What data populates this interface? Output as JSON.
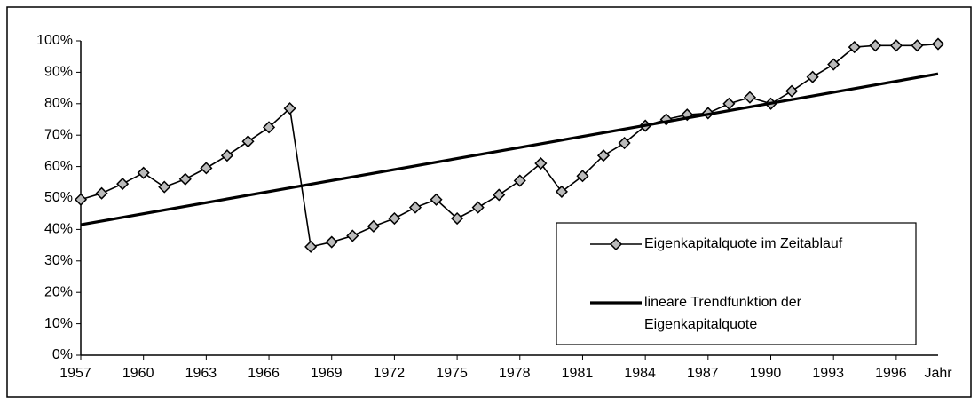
{
  "chart_data": {
    "type": "line",
    "x_label": "Jahr",
    "xlim": [
      1957,
      1998
    ],
    "xticks": [
      1957,
      1960,
      1963,
      1966,
      1969,
      1972,
      1975,
      1978,
      1981,
      1984,
      1987,
      1990,
      1993,
      1996
    ],
    "ylim": [
      0,
      100
    ],
    "yticks": [
      {
        "value": 0,
        "label": "0%"
      },
      {
        "value": 10,
        "label": "10%"
      },
      {
        "value": 20,
        "label": "20%"
      },
      {
        "value": 30,
        "label": "30%"
      },
      {
        "value": 40,
        "label": "40%"
      },
      {
        "value": 50,
        "label": "50%"
      },
      {
        "value": 60,
        "label": "60%"
      },
      {
        "value": 70,
        "label": "70%"
      },
      {
        "value": 80,
        "label": "80%"
      },
      {
        "value": 90,
        "label": "90%"
      },
      {
        "value": 100,
        "label": "100%"
      }
    ],
    "legend": "lower right",
    "series": [
      {
        "name": "Eigenkapitalquote im Zeitablauf",
        "color": "#000000",
        "marker": "diamond",
        "x": [
          1957,
          1958,
          1959,
          1960,
          1961,
          1962,
          1963,
          1964,
          1965,
          1966,
          1967,
          1968,
          1969,
          1970,
          1971,
          1972,
          1973,
          1974,
          1975,
          1976,
          1977,
          1978,
          1979,
          1980,
          1981,
          1982,
          1983,
          1984,
          1985,
          1986,
          1987,
          1988,
          1989,
          1990,
          1991,
          1992,
          1993,
          1994,
          1995,
          1996,
          1997,
          1998
        ],
        "values": [
          49.5,
          51.5,
          54.5,
          58,
          53.5,
          56,
          59.5,
          63.5,
          68,
          72.5,
          78.5,
          34.5,
          36,
          38,
          41,
          43.5,
          47,
          49.5,
          43.5,
          47,
          51,
          55.5,
          61,
          52,
          57,
          63.5,
          67.5,
          73,
          75,
          76.5,
          77,
          80,
          82,
          80,
          84,
          88.5,
          92.5,
          98,
          98.5,
          98.5,
          98.5,
          99
        ]
      },
      {
        "name": "lineare Trendfunktion der Eigenkapitalquote",
        "color": "#000000",
        "x": [
          1957,
          1998
        ],
        "values": [
          41.5,
          89.5
        ]
      }
    ]
  }
}
